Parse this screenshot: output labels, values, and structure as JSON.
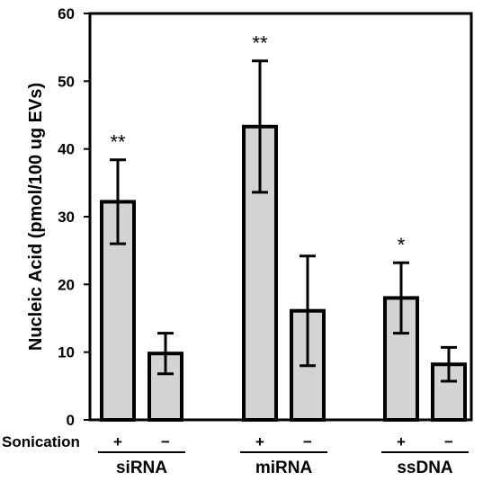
{
  "chart_data": {
    "type": "bar",
    "ylabel": "Nucleic Acid (pmol/100 ug EVs)",
    "ylim": [
      0,
      60
    ],
    "yticks": [
      0,
      10,
      20,
      30,
      40,
      50,
      60
    ],
    "grid": false,
    "row_label": "Sonication",
    "groups": [
      "siRNA",
      "miRNA",
      "ssDNA"
    ],
    "conditions": [
      "+",
      "−"
    ],
    "bars": [
      {
        "group": "siRNA",
        "condition": "+",
        "value": 32.2,
        "error": 6.2,
        "significance": "**"
      },
      {
        "group": "siRNA",
        "condition": "−",
        "value": 9.8,
        "error": 3.0,
        "significance": ""
      },
      {
        "group": "miRNA",
        "condition": "+",
        "value": 43.3,
        "error": 9.7,
        "significance": "**"
      },
      {
        "group": "miRNA",
        "condition": "−",
        "value": 16.1,
        "error": 8.1,
        "significance": ""
      },
      {
        "group": "ssDNA",
        "condition": "+",
        "value": 18.0,
        "error": 5.2,
        "significance": "*"
      },
      {
        "group": "ssDNA",
        "condition": "−",
        "value": 8.2,
        "error": 2.5,
        "significance": ""
      }
    ],
    "colors": {
      "bar_fill": "#d3d3d3",
      "bar_stroke": "#000000"
    }
  }
}
